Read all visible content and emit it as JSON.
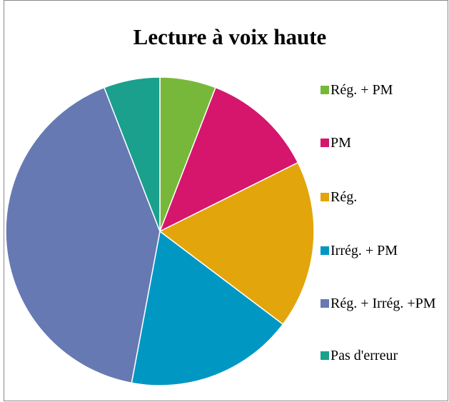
{
  "chart_data": {
    "type": "pie",
    "title": "Lecture à voix haute",
    "categories": [
      "Rég. + PM",
      "PM",
      "Rég.",
      "Irrég. + PM",
      "Rég. + Irrég. +PM",
      "Pas d'erreur"
    ],
    "values": [
      1,
      2,
      3,
      3,
      7,
      1
    ],
    "colors": [
      "#77b83a",
      "#d6156c",
      "#e2a50c",
      "#0097c3",
      "#6679b3",
      "#1aa08c"
    ],
    "legend": "right"
  }
}
